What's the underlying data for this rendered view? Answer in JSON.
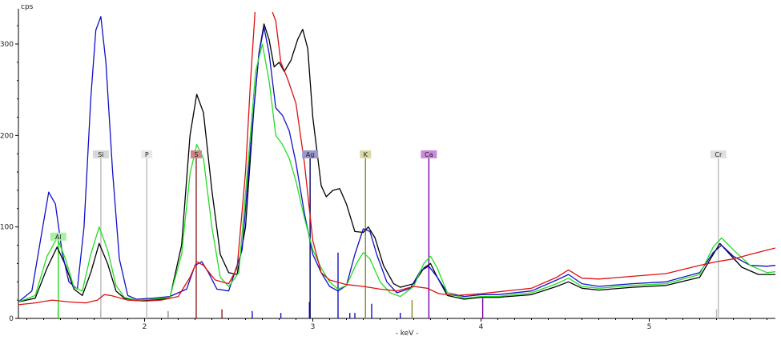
{
  "chart_data": {
    "type": "line",
    "ylabel": "cps",
    "xlabel": "- keV -",
    "xlim": [
      1.25,
      5.75
    ],
    "ylim": [
      0,
      335
    ],
    "x_ticks": [
      2,
      3,
      4,
      5
    ],
    "x_tick_labels": [
      "2",
      "3",
      "4",
      "5"
    ],
    "y_ticks": [
      0,
      100,
      200,
      300
    ],
    "y_tick_labels": [
      "0",
      "100",
      "200",
      "300"
    ],
    "grid": false,
    "colors": {
      "black": "#000000",
      "blue": "#1010c8",
      "green": "#22dd22",
      "red": "#dd1010"
    },
    "series": [
      {
        "color": "black",
        "points": [
          [
            1.25,
            18
          ],
          [
            1.35,
            22
          ],
          [
            1.42,
            55
          ],
          [
            1.48,
            78
          ],
          [
            1.53,
            58
          ],
          [
            1.58,
            32
          ],
          [
            1.63,
            25
          ],
          [
            1.68,
            50
          ],
          [
            1.73,
            82
          ],
          [
            1.78,
            60
          ],
          [
            1.83,
            30
          ],
          [
            1.88,
            22
          ],
          [
            1.95,
            20
          ],
          [
            2.05,
            20
          ],
          [
            2.15,
            22
          ],
          [
            2.22,
            80
          ],
          [
            2.27,
            200
          ],
          [
            2.31,
            245
          ],
          [
            2.35,
            225
          ],
          [
            2.4,
            140
          ],
          [
            2.45,
            70
          ],
          [
            2.5,
            50
          ],
          [
            2.55,
            48
          ],
          [
            2.6,
            100
          ],
          [
            2.65,
            230
          ],
          [
            2.68,
            290
          ],
          [
            2.71,
            322
          ],
          [
            2.74,
            305
          ],
          [
            2.77,
            275
          ],
          [
            2.8,
            280
          ],
          [
            2.83,
            270
          ],
          [
            2.87,
            282
          ],
          [
            2.91,
            305
          ],
          [
            2.94,
            316
          ],
          [
            2.97,
            295
          ],
          [
            3.0,
            220
          ],
          [
            3.05,
            145
          ],
          [
            3.08,
            133
          ],
          [
            3.12,
            140
          ],
          [
            3.16,
            142
          ],
          [
            3.2,
            125
          ],
          [
            3.25,
            95
          ],
          [
            3.3,
            94
          ],
          [
            3.33,
            100
          ],
          [
            3.37,
            88
          ],
          [
            3.42,
            58
          ],
          [
            3.48,
            38
          ],
          [
            3.52,
            34
          ],
          [
            3.6,
            38
          ],
          [
            3.66,
            55
          ],
          [
            3.7,
            60
          ],
          [
            3.74,
            45
          ],
          [
            3.8,
            25
          ],
          [
            3.9,
            21
          ],
          [
            4.0,
            23
          ],
          [
            4.1,
            23
          ],
          [
            4.3,
            26
          ],
          [
            4.45,
            35
          ],
          [
            4.52,
            40
          ],
          [
            4.6,
            33
          ],
          [
            4.7,
            31
          ],
          [
            4.9,
            34
          ],
          [
            5.1,
            36
          ],
          [
            5.3,
            45
          ],
          [
            5.38,
            70
          ],
          [
            5.42,
            82
          ],
          [
            5.48,
            70
          ],
          [
            5.55,
            56
          ],
          [
            5.65,
            48
          ],
          [
            5.75,
            48
          ]
        ]
      },
      {
        "color": "blue",
        "points": [
          [
            1.25,
            18
          ],
          [
            1.33,
            30
          ],
          [
            1.39,
            95
          ],
          [
            1.43,
            138
          ],
          [
            1.47,
            125
          ],
          [
            1.51,
            72
          ],
          [
            1.55,
            40
          ],
          [
            1.6,
            32
          ],
          [
            1.64,
            100
          ],
          [
            1.68,
            240
          ],
          [
            1.71,
            315
          ],
          [
            1.74,
            330
          ],
          [
            1.77,
            280
          ],
          [
            1.81,
            160
          ],
          [
            1.85,
            65
          ],
          [
            1.9,
            25
          ],
          [
            1.95,
            21
          ],
          [
            2.05,
            22
          ],
          [
            2.15,
            24
          ],
          [
            2.25,
            32
          ],
          [
            2.3,
            58
          ],
          [
            2.34,
            62
          ],
          [
            2.38,
            50
          ],
          [
            2.43,
            32
          ],
          [
            2.5,
            30
          ],
          [
            2.58,
            75
          ],
          [
            2.64,
            210
          ],
          [
            2.68,
            290
          ],
          [
            2.71,
            318
          ],
          [
            2.74,
            290
          ],
          [
            2.78,
            230
          ],
          [
            2.82,
            222
          ],
          [
            2.86,
            205
          ],
          [
            2.9,
            170
          ],
          [
            2.95,
            115
          ],
          [
            3.0,
            70
          ],
          [
            3.05,
            50
          ],
          [
            3.1,
            35
          ],
          [
            3.15,
            30
          ],
          [
            3.2,
            36
          ],
          [
            3.25,
            70
          ],
          [
            3.3,
            98
          ],
          [
            3.34,
            95
          ],
          [
            3.38,
            70
          ],
          [
            3.44,
            40
          ],
          [
            3.5,
            28
          ],
          [
            3.58,
            33
          ],
          [
            3.64,
            52
          ],
          [
            3.69,
            57
          ],
          [
            3.74,
            45
          ],
          [
            3.8,
            28
          ],
          [
            3.9,
            24
          ],
          [
            4.0,
            26
          ],
          [
            4.1,
            26
          ],
          [
            4.3,
            30
          ],
          [
            4.45,
            42
          ],
          [
            4.52,
            48
          ],
          [
            4.6,
            38
          ],
          [
            4.7,
            35
          ],
          [
            4.9,
            38
          ],
          [
            5.1,
            40
          ],
          [
            5.3,
            50
          ],
          [
            5.38,
            72
          ],
          [
            5.43,
            80
          ],
          [
            5.5,
            68
          ],
          [
            5.6,
            58
          ],
          [
            5.7,
            57
          ],
          [
            5.75,
            58
          ]
        ]
      },
      {
        "color": "green",
        "points": [
          [
            1.25,
            18
          ],
          [
            1.35,
            25
          ],
          [
            1.42,
            68
          ],
          [
            1.48,
            88
          ],
          [
            1.53,
            65
          ],
          [
            1.58,
            34
          ],
          [
            1.63,
            30
          ],
          [
            1.68,
            70
          ],
          [
            1.73,
            100
          ],
          [
            1.78,
            75
          ],
          [
            1.83,
            36
          ],
          [
            1.88,
            23
          ],
          [
            1.95,
            20
          ],
          [
            2.05,
            21
          ],
          [
            2.15,
            23
          ],
          [
            2.22,
            70
          ],
          [
            2.27,
            158
          ],
          [
            2.31,
            190
          ],
          [
            2.35,
            175
          ],
          [
            2.4,
            100
          ],
          [
            2.45,
            45
          ],
          [
            2.5,
            35
          ],
          [
            2.56,
            50
          ],
          [
            2.62,
            180
          ],
          [
            2.66,
            270
          ],
          [
            2.7,
            300
          ],
          [
            2.74,
            260
          ],
          [
            2.78,
            200
          ],
          [
            2.82,
            190
          ],
          [
            2.86,
            175
          ],
          [
            2.9,
            150
          ],
          [
            2.95,
            110
          ],
          [
            3.0,
            75
          ],
          [
            3.05,
            55
          ],
          [
            3.1,
            40
          ],
          [
            3.15,
            32
          ],
          [
            3.2,
            36
          ],
          [
            3.26,
            60
          ],
          [
            3.3,
            72
          ],
          [
            3.34,
            65
          ],
          [
            3.4,
            40
          ],
          [
            3.46,
            28
          ],
          [
            3.52,
            24
          ],
          [
            3.6,
            35
          ],
          [
            3.66,
            60
          ],
          [
            3.7,
            68
          ],
          [
            3.74,
            55
          ],
          [
            3.8,
            28
          ],
          [
            3.9,
            22
          ],
          [
            4.0,
            24
          ],
          [
            4.1,
            24
          ],
          [
            4.3,
            28
          ],
          [
            4.45,
            38
          ],
          [
            4.52,
            44
          ],
          [
            4.6,
            35
          ],
          [
            4.7,
            33
          ],
          [
            4.9,
            36
          ],
          [
            5.1,
            38
          ],
          [
            5.3,
            48
          ],
          [
            5.38,
            78
          ],
          [
            5.43,
            88
          ],
          [
            5.5,
            75
          ],
          [
            5.6,
            58
          ],
          [
            5.7,
            50
          ],
          [
            5.75,
            51
          ]
        ]
      },
      {
        "color": "red",
        "points": [
          [
            1.25,
            15
          ],
          [
            1.35,
            17
          ],
          [
            1.45,
            20
          ],
          [
            1.55,
            18
          ],
          [
            1.65,
            17
          ],
          [
            1.72,
            20
          ],
          [
            1.76,
            26
          ],
          [
            1.8,
            25
          ],
          [
            1.9,
            20
          ],
          [
            2.0,
            19
          ],
          [
            2.1,
            20
          ],
          [
            2.2,
            24
          ],
          [
            2.27,
            45
          ],
          [
            2.31,
            62
          ],
          [
            2.35,
            58
          ],
          [
            2.42,
            42
          ],
          [
            2.5,
            38
          ],
          [
            2.55,
            55
          ],
          [
            2.6,
            160
          ],
          [
            2.63,
            260
          ],
          [
            2.66,
            345
          ],
          [
            2.7,
            345
          ],
          [
            2.74,
            345
          ],
          [
            2.78,
            325
          ],
          [
            2.81,
            280
          ],
          [
            2.85,
            262
          ],
          [
            2.9,
            235
          ],
          [
            2.95,
            170
          ],
          [
            3.0,
            85
          ],
          [
            3.05,
            50
          ],
          [
            3.1,
            42
          ],
          [
            3.2,
            37
          ],
          [
            3.3,
            35
          ],
          [
            3.4,
            32
          ],
          [
            3.5,
            30
          ],
          [
            3.6,
            35
          ],
          [
            3.68,
            33
          ],
          [
            3.75,
            27
          ],
          [
            3.85,
            25
          ],
          [
            4.0,
            27
          ],
          [
            4.1,
            29
          ],
          [
            4.3,
            33
          ],
          [
            4.45,
            45
          ],
          [
            4.52,
            53
          ],
          [
            4.6,
            44
          ],
          [
            4.7,
            43
          ],
          [
            4.9,
            46
          ],
          [
            5.1,
            49
          ],
          [
            5.3,
            58
          ],
          [
            5.4,
            62
          ],
          [
            5.5,
            65
          ],
          [
            5.6,
            70
          ],
          [
            5.75,
            77
          ]
        ]
      }
    ],
    "element_markers": [
      {
        "label": "Al",
        "energy": 1.487,
        "color": "#22dd22",
        "bg": "#a8f0a8",
        "height": 85
      },
      {
        "label": "Si",
        "energy": 1.74,
        "color": "#bbbbbb",
        "bg": "#d8d8d8",
        "height": 175
      },
      {
        "label": "P",
        "energy": 2.013,
        "color": "#bbbbbb",
        "bg": "#e8e8e8",
        "height": 175
      },
      {
        "label": "S",
        "energy": 2.307,
        "color": "#882222",
        "bg": "#cc8888",
        "height": 175
      },
      {
        "label": "Ag",
        "energy": 2.984,
        "color": "#000066",
        "bg": "#9999cc",
        "height": 175
      },
      {
        "label": "K",
        "energy": 3.313,
        "color": "#888822",
        "bg": "#d8d8a0",
        "height": 175
      },
      {
        "label": "Ca",
        "energy": 3.69,
        "color": "#7700aa",
        "bg": "#cc88dd",
        "height": 175
      },
      {
        "label": "Cr",
        "energy": 5.411,
        "color": "#bbbbbb",
        "bg": "#e0e0e0",
        "height": 175
      }
    ],
    "minor_lines": [
      {
        "energy": 1.486,
        "height": 10,
        "color": "#22dd22"
      },
      {
        "energy": 1.739,
        "height": 8,
        "color": "#888888"
      },
      {
        "energy": 2.14,
        "height": 8,
        "color": "#888888"
      },
      {
        "energy": 2.46,
        "height": 10,
        "color": "#882222"
      },
      {
        "energy": 2.64,
        "height": 8,
        "color": "#1010c8"
      },
      {
        "energy": 2.81,
        "height": 6,
        "color": "#1010c8"
      },
      {
        "energy": 2.98,
        "height": 18,
        "color": "#1010c8"
      },
      {
        "energy": 3.15,
        "height": 72,
        "color": "#1010c8"
      },
      {
        "energy": 3.22,
        "height": 6,
        "color": "#1010c8"
      },
      {
        "energy": 3.25,
        "height": 6,
        "color": "#1010c8"
      },
      {
        "energy": 3.35,
        "height": 16,
        "color": "#1010c8"
      },
      {
        "energy": 3.52,
        "height": 6,
        "color": "#1010c8"
      },
      {
        "energy": 3.59,
        "height": 20,
        "color": "#888822"
      },
      {
        "energy": 4.01,
        "height": 22,
        "color": "#7700aa"
      },
      {
        "energy": 5.4,
        "height": 10,
        "color": "#bbbbbb"
      }
    ]
  }
}
